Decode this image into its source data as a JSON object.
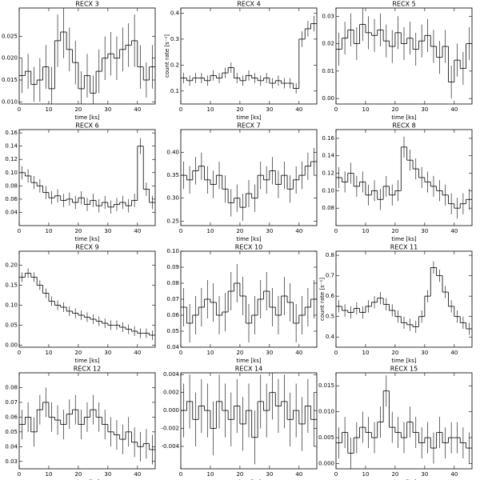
{
  "chart_data": [
    {
      "type": "step",
      "title": "RECX 3",
      "xlabel": "time [ks]",
      "color": "#000000",
      "x": [
        1,
        3,
        5,
        7,
        9,
        11,
        13,
        15,
        17,
        19,
        21,
        23,
        25,
        27,
        29,
        31,
        33,
        35,
        37,
        39,
        41,
        43,
        45
      ],
      "values": [
        0.016,
        0.017,
        0.014,
        0.015,
        0.018,
        0.013,
        0.024,
        0.026,
        0.022,
        0.019,
        0.013,
        0.016,
        0.012,
        0.017,
        0.02,
        0.021,
        0.02,
        0.022,
        0.023,
        0.024,
        0.018,
        0.015,
        0.018
      ],
      "errors": [
        0.004,
        0.004,
        0.004,
        0.005,
        0.005,
        0.005,
        0.006,
        0.006,
        0.005,
        0.005,
        0.004,
        0.005,
        0.004,
        0.005,
        0.005,
        0.005,
        0.005,
        0.005,
        0.005,
        0.006,
        0.005,
        0.004,
        0.005
      ],
      "xlim": [
        0,
        46
      ],
      "xticks": [
        0,
        10,
        20,
        30,
        40
      ],
      "ylim": [
        0.0095,
        0.0315
      ],
      "yticks": [
        {
          "value": 0.01,
          "label": "0.010"
        },
        0.015,
        {
          "value": 0.02,
          "label": "0.020"
        },
        0.025
      ]
    },
    {
      "type": "step",
      "title": "RECX 4",
      "xlabel": "time [ks]",
      "ylabel": "count rate [s⁻¹]",
      "color": "#000000",
      "x": [
        1,
        3,
        5,
        7,
        9,
        11,
        13,
        15,
        17,
        19,
        21,
        23,
        25,
        27,
        29,
        31,
        33,
        35,
        37,
        39,
        41,
        43,
        45
      ],
      "values": [
        0.15,
        0.14,
        0.15,
        0.15,
        0.14,
        0.16,
        0.15,
        0.17,
        0.19,
        0.15,
        0.14,
        0.16,
        0.15,
        0.14,
        0.15,
        0.13,
        0.14,
        0.13,
        0.13,
        0.11,
        0.3,
        0.34,
        0.36
      ],
      "errors": [
        0.02,
        0.02,
        0.02,
        0.02,
        0.02,
        0.02,
        0.02,
        0.02,
        0.02,
        0.02,
        0.02,
        0.02,
        0.02,
        0.02,
        0.02,
        0.02,
        0.02,
        0.02,
        0.02,
        0.02,
        0.03,
        0.03,
        0.03
      ],
      "xlim": [
        0,
        46
      ],
      "xticks": [
        0,
        10,
        20,
        30,
        40
      ],
      "ylim": [
        0.05,
        0.42
      ],
      "yticks": [
        0.1,
        0.2,
        0.3,
        0.4
      ]
    },
    {
      "type": "step",
      "title": "RECX 5",
      "xlabel": "time [ks]",
      "color": "#000000",
      "x": [
        1,
        3,
        5,
        7,
        9,
        11,
        13,
        15,
        17,
        19,
        21,
        23,
        25,
        27,
        29,
        31,
        33,
        35,
        37,
        39,
        41,
        43,
        45
      ],
      "values": [
        0.018,
        0.022,
        0.025,
        0.02,
        0.027,
        0.024,
        0.023,
        0.025,
        0.021,
        0.019,
        0.024,
        0.02,
        0.022,
        0.018,
        0.021,
        0.023,
        0.019,
        0.015,
        0.019,
        0.006,
        0.014,
        0.011,
        0.02
      ],
      "errors": [
        0.006,
        0.006,
        0.006,
        0.006,
        0.006,
        0.006,
        0.006,
        0.006,
        0.006,
        0.006,
        0.006,
        0.006,
        0.006,
        0.006,
        0.006,
        0.006,
        0.006,
        0.006,
        0.006,
        0.006,
        0.006,
        0.006,
        0.006
      ],
      "xlim": [
        0,
        46
      ],
      "xticks": [
        0,
        10,
        20,
        30,
        40
      ],
      "ylim": [
        -0.002,
        0.033
      ],
      "yticks": [
        {
          "value": 0,
          "label": "0.00"
        },
        0.01,
        {
          "value": 0.02,
          "label": "0.02"
        },
        0.03
      ]
    },
    {
      "type": "step",
      "title": "RECX 6",
      "xlabel": "time [ks]",
      "color": "#000000",
      "x": [
        1,
        3,
        5,
        7,
        9,
        11,
        13,
        15,
        17,
        19,
        21,
        23,
        25,
        27,
        29,
        31,
        33,
        35,
        37,
        39,
        41,
        43,
        45
      ],
      "values": [
        0.1,
        0.095,
        0.085,
        0.08,
        0.07,
        0.062,
        0.065,
        0.058,
        0.06,
        0.055,
        0.062,
        0.052,
        0.058,
        0.05,
        0.055,
        0.048,
        0.052,
        0.055,
        0.05,
        0.058,
        0.14,
        0.075,
        0.055
      ],
      "errors": [
        0.01,
        0.01,
        0.01,
        0.01,
        0.01,
        0.01,
        0.01,
        0.01,
        0.01,
        0.01,
        0.01,
        0.01,
        0.01,
        0.01,
        0.01,
        0.01,
        0.01,
        0.01,
        0.01,
        0.01,
        0.012,
        0.01,
        0.01
      ],
      "xlim": [
        0,
        46
      ],
      "xticks": [
        0,
        10,
        20,
        30,
        40
      ],
      "ylim": [
        0.02,
        0.165
      ],
      "yticks": [
        0.04,
        0.06,
        0.08,
        {
          "value": 0.1,
          "label": "0.10"
        },
        0.12,
        0.14,
        0.16
      ]
    },
    {
      "type": "step",
      "title": "RECX 7",
      "xlabel": "time [ks]",
      "color": "#000000",
      "x": [
        1,
        3,
        5,
        7,
        9,
        11,
        13,
        15,
        17,
        19,
        21,
        23,
        25,
        27,
        29,
        31,
        33,
        35,
        37,
        39,
        41,
        43,
        45
      ],
      "values": [
        0.35,
        0.34,
        0.36,
        0.37,
        0.34,
        0.33,
        0.35,
        0.32,
        0.29,
        0.3,
        0.28,
        0.31,
        0.3,
        0.35,
        0.34,
        0.36,
        0.33,
        0.35,
        0.32,
        0.34,
        0.35,
        0.37,
        0.38
      ],
      "errors": [
        0.03,
        0.03,
        0.03,
        0.03,
        0.03,
        0.03,
        0.03,
        0.03,
        0.03,
        0.03,
        0.03,
        0.03,
        0.03,
        0.03,
        0.03,
        0.03,
        0.03,
        0.03,
        0.03,
        0.03,
        0.03,
        0.03,
        0.03
      ],
      "xlim": [
        0,
        46
      ],
      "xticks": [
        0,
        10,
        20,
        30,
        40
      ],
      "ylim": [
        0.24,
        0.45
      ],
      "yticks": [
        0.25,
        {
          "value": 0.3,
          "label": "0.30"
        },
        0.35,
        {
          "value": 0.4,
          "label": "0.40"
        }
      ]
    },
    {
      "type": "step",
      "title": "RECX 8",
      "xlabel": "time [ks]",
      "color": "#000000",
      "x": [
        1,
        3,
        5,
        7,
        9,
        11,
        13,
        15,
        17,
        19,
        21,
        23,
        25,
        27,
        29,
        31,
        33,
        35,
        37,
        39,
        41,
        43,
        45
      ],
      "values": [
        0.115,
        0.11,
        0.12,
        0.105,
        0.11,
        0.095,
        0.1,
        0.09,
        0.105,
        0.095,
        0.1,
        0.15,
        0.135,
        0.125,
        0.115,
        0.11,
        0.105,
        0.1,
        0.095,
        0.085,
        0.08,
        0.085,
        0.09
      ],
      "errors": [
        0.012,
        0.012,
        0.012,
        0.012,
        0.012,
        0.012,
        0.012,
        0.012,
        0.012,
        0.012,
        0.012,
        0.012,
        0.012,
        0.012,
        0.012,
        0.012,
        0.012,
        0.012,
        0.012,
        0.012,
        0.012,
        0.012,
        0.012
      ],
      "xlim": [
        0,
        46
      ],
      "xticks": [
        0,
        10,
        20,
        30,
        40
      ],
      "ylim": [
        0.06,
        0.17
      ],
      "yticks": [
        0.08,
        {
          "value": 0.1,
          "label": "0.10"
        },
        0.12,
        0.14,
        0.16
      ]
    },
    {
      "type": "step",
      "title": "RECX 9",
      "xlabel": "time [ks]",
      "color": "#000000",
      "x": [
        1,
        3,
        5,
        7,
        9,
        11,
        13,
        15,
        17,
        19,
        21,
        23,
        25,
        27,
        29,
        31,
        33,
        35,
        37,
        39,
        41,
        43,
        45
      ],
      "values": [
        0.17,
        0.18,
        0.17,
        0.15,
        0.13,
        0.11,
        0.1,
        0.095,
        0.085,
        0.08,
        0.075,
        0.07,
        0.065,
        0.06,
        0.055,
        0.05,
        0.05,
        0.045,
        0.04,
        0.035,
        0.03,
        0.03,
        0.025
      ],
      "errors": [
        0.012,
        0.012,
        0.012,
        0.012,
        0.012,
        0.012,
        0.012,
        0.012,
        0.012,
        0.012,
        0.012,
        0.012,
        0.012,
        0.012,
        0.012,
        0.012,
        0.012,
        0.012,
        0.012,
        0.012,
        0.012,
        0.012,
        0.012
      ],
      "xlim": [
        0,
        46
      ],
      "xticks": [
        0,
        10,
        20,
        30,
        40
      ],
      "ylim": [
        -0.005,
        0.235
      ],
      "yticks": [
        {
          "value": 0,
          "label": "0.00"
        },
        0.05,
        {
          "value": 0.1,
          "label": "0.10"
        },
        0.15,
        {
          "value": 0.2,
          "label": "0.20"
        }
      ]
    },
    {
      "type": "step",
      "title": "RECX 10",
      "xlabel": "time [ks]",
      "color": "#000000",
      "x": [
        1,
        3,
        5,
        7,
        9,
        11,
        13,
        15,
        17,
        19,
        21,
        23,
        25,
        27,
        29,
        31,
        33,
        35,
        37,
        39,
        41,
        43,
        45
      ],
      "values": [
        0.065,
        0.055,
        0.06,
        0.065,
        0.07,
        0.068,
        0.06,
        0.062,
        0.075,
        0.08,
        0.072,
        0.055,
        0.06,
        0.07,
        0.075,
        0.065,
        0.06,
        0.072,
        0.068,
        0.055,
        0.06,
        0.065,
        0.07
      ],
      "errors": [
        0.012,
        0.012,
        0.012,
        0.012,
        0.012,
        0.012,
        0.012,
        0.012,
        0.012,
        0.012,
        0.012,
        0.012,
        0.012,
        0.012,
        0.012,
        0.012,
        0.012,
        0.012,
        0.012,
        0.012,
        0.012,
        0.012,
        0.012
      ],
      "xlim": [
        0,
        46
      ],
      "xticks": [
        0,
        10,
        20,
        30,
        40
      ],
      "ylim": [
        0.04,
        0.1
      ],
      "yticks": [
        0.04,
        0.05,
        0.06,
        0.07,
        0.08,
        0.09,
        {
          "value": 0.1,
          "label": "0.10"
        }
      ]
    },
    {
      "type": "step",
      "title": "RECX 11",
      "xlabel": "time [ks]",
      "ylabel": "count rate [s⁻¹]",
      "color": "#000000",
      "x": [
        1,
        3,
        5,
        7,
        9,
        11,
        13,
        15,
        17,
        19,
        21,
        23,
        25,
        27,
        29,
        31,
        33,
        35,
        37,
        39,
        41,
        43,
        45
      ],
      "values": [
        0.55,
        0.53,
        0.52,
        0.54,
        0.52,
        0.55,
        0.57,
        0.59,
        0.56,
        0.53,
        0.5,
        0.47,
        0.46,
        0.45,
        0.5,
        0.6,
        0.74,
        0.7,
        0.62,
        0.55,
        0.5,
        0.47,
        0.44
      ],
      "errors": [
        0.03,
        0.03,
        0.03,
        0.03,
        0.03,
        0.03,
        0.03,
        0.03,
        0.03,
        0.03,
        0.03,
        0.03,
        0.03,
        0.03,
        0.03,
        0.03,
        0.03,
        0.03,
        0.03,
        0.03,
        0.03,
        0.03,
        0.03
      ],
      "xlim": [
        0,
        46
      ],
      "xticks": [
        0,
        10,
        20,
        30,
        40
      ],
      "ylim": [
        0.35,
        0.82
      ],
      "yticks": [
        0.4,
        0.5,
        0.6,
        0.7,
        0.8
      ]
    },
    {
      "type": "step",
      "title": "RECX 12",
      "xlabel": "time [ks]",
      "color": "#000000",
      "x": [
        1,
        3,
        5,
        7,
        9,
        11,
        13,
        15,
        17,
        19,
        21,
        23,
        25,
        27,
        29,
        31,
        33,
        35,
        37,
        39,
        41,
        43,
        45
      ],
      "values": [
        0.055,
        0.06,
        0.05,
        0.065,
        0.07,
        0.06,
        0.058,
        0.055,
        0.062,
        0.065,
        0.055,
        0.06,
        0.065,
        0.06,
        0.055,
        0.05,
        0.048,
        0.045,
        0.05,
        0.043,
        0.04,
        0.042,
        0.038
      ],
      "errors": [
        0.01,
        0.01,
        0.01,
        0.01,
        0.01,
        0.01,
        0.01,
        0.01,
        0.01,
        0.01,
        0.01,
        0.01,
        0.01,
        0.01,
        0.01,
        0.01,
        0.01,
        0.01,
        0.01,
        0.01,
        0.01,
        0.01,
        0.01
      ],
      "xlim": [
        0,
        46
      ],
      "xticks": [
        0,
        10,
        20,
        30,
        40
      ],
      "ylim": [
        0.025,
        0.09
      ],
      "yticks": [
        0.03,
        0.04,
        0.05,
        0.06,
        0.07,
        0.08
      ]
    },
    {
      "type": "step",
      "title": "RECX 14",
      "xlabel": "time [ks]",
      "color": "#000000",
      "x": [
        1,
        3,
        5,
        7,
        9,
        11,
        13,
        15,
        17,
        19,
        21,
        23,
        25,
        27,
        29,
        31,
        33,
        35,
        37,
        39,
        41,
        43,
        45
      ],
      "values": [
        0.0,
        0.001,
        -0.001,
        0.0005,
        0.0,
        -0.002,
        0.001,
        0.0,
        -0.001,
        0.0005,
        -0.0015,
        0.0,
        -0.003,
        0.001,
        0.0,
        0.002,
        0.0005,
        0.001,
        -0.001,
        0.0,
        -0.0015,
        0.0005,
        -0.001
      ],
      "errors": [
        0.003,
        0.003,
        0.003,
        0.003,
        0.003,
        0.003,
        0.003,
        0.003,
        0.003,
        0.003,
        0.003,
        0.003,
        0.003,
        0.003,
        0.003,
        0.003,
        0.003,
        0.003,
        0.003,
        0.003,
        0.003,
        0.003,
        0.003
      ],
      "xlim": [
        0,
        46
      ],
      "xticks": [
        0,
        10,
        20,
        30,
        40
      ],
      "ylim": [
        -0.0065,
        0.0042
      ],
      "yticks": [
        -0.004,
        -0.002,
        {
          "value": 0,
          "label": "0.000"
        },
        0.002,
        0.004
      ]
    },
    {
      "type": "step",
      "title": "RECX 15",
      "xlabel": "time [ks]",
      "color": "#000000",
      "x": [
        1,
        3,
        5,
        7,
        9,
        11,
        13,
        15,
        17,
        19,
        21,
        23,
        25,
        27,
        29,
        31,
        33,
        35,
        37,
        39,
        41,
        43,
        45
      ],
      "values": [
        0.004,
        0.006,
        0.002,
        0.005,
        0.007,
        0.006,
        0.005,
        0.008,
        0.014,
        0.007,
        0.006,
        0.005,
        0.008,
        0.006,
        0.004,
        0.005,
        0.003,
        0.006,
        0.004,
        0.005,
        0.005,
        0.004,
        0.003
      ],
      "errors": [
        0.003,
        0.003,
        0.003,
        0.003,
        0.003,
        0.003,
        0.003,
        0.003,
        0.003,
        0.003,
        0.003,
        0.003,
        0.003,
        0.003,
        0.003,
        0.003,
        0.003,
        0.003,
        0.003,
        0.003,
        0.003,
        0.003,
        0.003
      ],
      "xlim": [
        0,
        46
      ],
      "xticks": [
        0,
        10,
        20,
        30,
        40
      ],
      "ylim": [
        -0.001,
        0.0175
      ],
      "yticks": [
        {
          "value": 0,
          "label": "0.000"
        },
        0.005,
        {
          "value": 0.01,
          "label": "0.010"
        },
        0.015
      ]
    }
  ]
}
